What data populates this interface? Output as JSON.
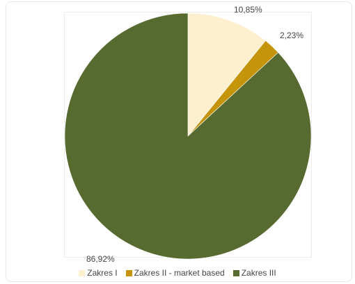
{
  "chart_data": {
    "type": "pie",
    "title": "",
    "slices": [
      {
        "name": "Zakres I",
        "value": 10.85,
        "label": "10,85%",
        "color": "#fdf0cf"
      },
      {
        "name": "Zakres II - market based",
        "value": 2.23,
        "label": "2,23%",
        "color": "#c4950b"
      },
      {
        "name": "Zakres III",
        "value": 86.92,
        "label": "86,92%",
        "color": "#576b30"
      }
    ],
    "legend_position": "bottom",
    "start_angle_deg": 0,
    "direction": "clockwise"
  }
}
